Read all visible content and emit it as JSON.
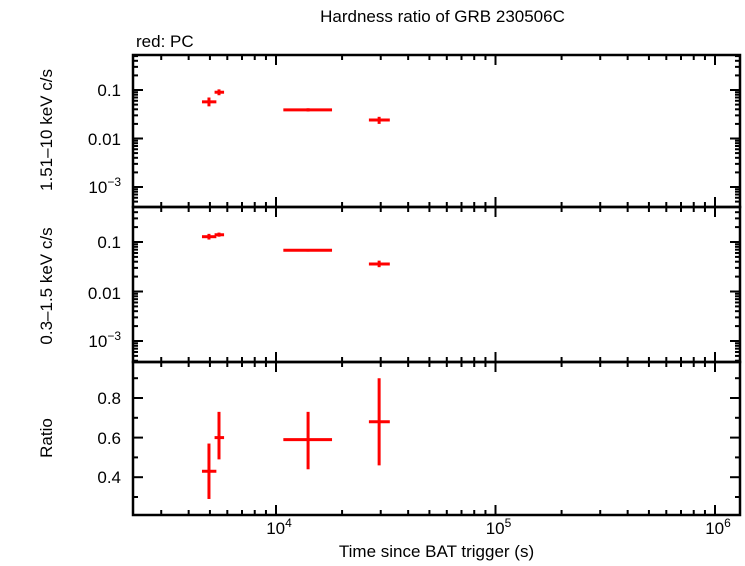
{
  "header": {
    "title": "Hardness ratio of GRB 230506C",
    "subtitle": "red: PC"
  },
  "axes": {
    "xlabel": "Time since BAT trigger (s)",
    "panel1_ylabel": "1.51–10 keV c/s",
    "panel2_ylabel": "0.3–1.5 keV c/s",
    "panel3_ylabel": "Ratio",
    "x_ticks": [
      "10^4",
      "10^5",
      "10^6"
    ],
    "panel1_ticks": [
      "0.1",
      "0.01",
      "10^-3"
    ],
    "panel2_ticks": [
      "0.1",
      "0.01",
      "10^-3"
    ],
    "panel3_ticks": [
      "0.8",
      "0.6",
      "0.4"
    ]
  },
  "colors": {
    "series": "#ff0000",
    "axes": "#000000"
  },
  "chart_data": [
    {
      "type": "scatter",
      "title": "Hardness ratio of GRB 230506C",
      "panel": "top",
      "xlabel": "Time since BAT trigger (s)",
      "ylabel": "1.51–10 keV c/s",
      "xscale": "log",
      "yscale": "log",
      "xlim": [
        2300,
        1250000
      ],
      "ylim": [
        0.0004,
        0.45
      ],
      "legend": "red: PC",
      "series": [
        {
          "name": "PC",
          "color": "#ff0000",
          "x": [
            4950,
            5500,
            14000,
            29500
          ],
          "x_err_low": [
            4600,
            5250,
            10800,
            26500
          ],
          "x_err_high": [
            5350,
            5800,
            18000,
            33000
          ],
          "y": [
            0.057,
            0.09,
            0.039,
            0.024
          ],
          "y_err_low": [
            0.046,
            0.078,
            0.036,
            0.02
          ],
          "y_err_high": [
            0.07,
            0.103,
            0.042,
            0.028
          ]
        }
      ]
    },
    {
      "type": "scatter",
      "panel": "middle",
      "ylabel": "0.3–1.5 keV c/s",
      "xscale": "log",
      "yscale": "log",
      "xlim": [
        2300,
        1250000
      ],
      "ylim": [
        0.0004,
        0.45
      ],
      "series": [
        {
          "name": "PC",
          "color": "#ff0000",
          "x": [
            4950,
            5500,
            14000,
            29500
          ],
          "x_err_low": [
            4600,
            5250,
            10800,
            26500
          ],
          "x_err_high": [
            5350,
            5800,
            18000,
            33000
          ],
          "y": [
            0.128,
            0.14,
            0.068,
            0.036
          ],
          "y_err_low": [
            0.112,
            0.128,
            0.064,
            0.031
          ],
          "y_err_high": [
            0.146,
            0.155,
            0.072,
            0.042
          ]
        }
      ]
    },
    {
      "type": "scatter",
      "panel": "bottom",
      "ylabel": "Ratio",
      "xscale": "log",
      "yscale": "linear",
      "xlim": [
        2300,
        1250000
      ],
      "ylim": [
        0.2,
        0.98
      ],
      "series": [
        {
          "name": "PC",
          "color": "#ff0000",
          "x": [
            4950,
            5500,
            14000,
            29500
          ],
          "x_err_low": [
            4600,
            5250,
            10800,
            26500
          ],
          "x_err_high": [
            5350,
            5800,
            18000,
            33000
          ],
          "y": [
            0.43,
            0.6,
            0.59,
            0.68
          ],
          "y_err_low": [
            0.29,
            0.49,
            0.44,
            0.46
          ],
          "y_err_high": [
            0.57,
            0.73,
            0.73,
            0.9
          ]
        }
      ]
    }
  ]
}
